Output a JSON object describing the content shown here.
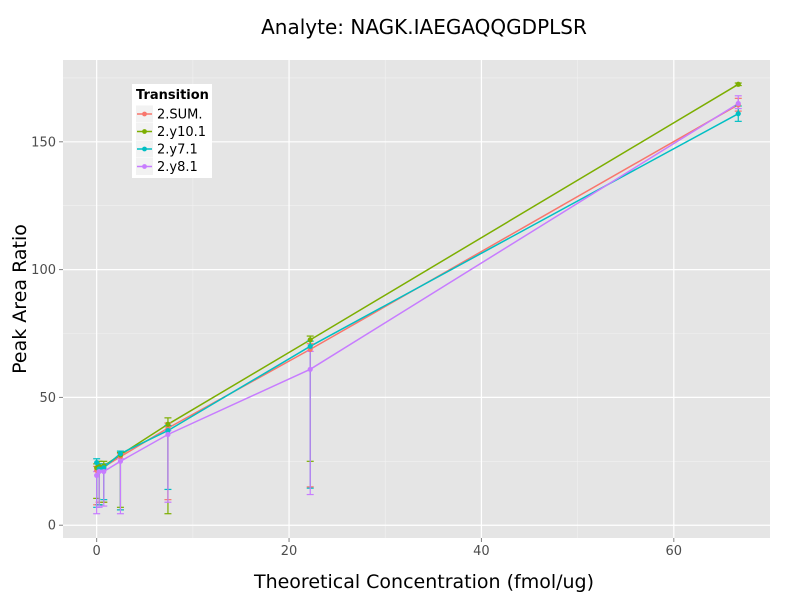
{
  "chart_data": {
    "type": "line",
    "title": "Analyte: NAGK.IAEGAQQGDPLSR",
    "xlabel": "Theoretical Concentration (fmol/ug)",
    "ylabel": "Peak Area Ratio",
    "xlim": [
      -3.5,
      70
    ],
    "ylim": [
      -5,
      182
    ],
    "x_ticks": [
      0,
      20,
      40,
      60
    ],
    "y_ticks": [
      0,
      50,
      100,
      150
    ],
    "x_tick_labels": [
      "0",
      "20",
      "40",
      "60"
    ],
    "y_tick_labels": [
      "0",
      "50",
      "100",
      "150"
    ],
    "grid": true,
    "legend": {
      "title": "Transition",
      "position": "top-left"
    },
    "x": [
      0,
      0.25,
      0.74,
      2.47,
      7.41,
      22.2,
      66.7
    ],
    "series": [
      {
        "name": "2.SUM.",
        "color": "#F8766D",
        "values": [
          21.5,
          22.5,
          22.8,
          26.8,
          38.0,
          68.8,
          164.5
        ],
        "lower": [
          8,
          9,
          9,
          6,
          10,
          15,
          162
        ],
        "upper": [
          23,
          24,
          24,
          28,
          40,
          71,
          167
        ]
      },
      {
        "name": "2.y10.1",
        "color": "#7CAE00",
        "values": [
          22.5,
          23.0,
          23.2,
          27.5,
          39.5,
          72.5,
          172.5
        ],
        "lower": [
          10.5,
          8,
          9,
          7,
          4.5,
          25,
          172
        ],
        "upper": [
          24,
          25,
          25,
          28.5,
          42,
          74,
          173
        ]
      },
      {
        "name": "2.y7.1",
        "color": "#00BFC4",
        "values": [
          24.5,
          22.0,
          22.5,
          28.0,
          37.0,
          70.0,
          161.0
        ],
        "lower": [
          7,
          8,
          10,
          6,
          14,
          14.5,
          158
        ],
        "upper": [
          26,
          24,
          24,
          29,
          39,
          72,
          164
        ]
      },
      {
        "name": "2.y8.1",
        "color": "#C77CFF",
        "values": [
          19.5,
          21.0,
          21.0,
          25.0,
          35.5,
          61.0,
          165.0
        ],
        "lower": [
          4.5,
          7,
          7.5,
          4.5,
          9,
          12,
          163
        ],
        "upper": [
          21,
          22,
          22,
          26,
          37,
          68,
          168
        ]
      }
    ]
  }
}
